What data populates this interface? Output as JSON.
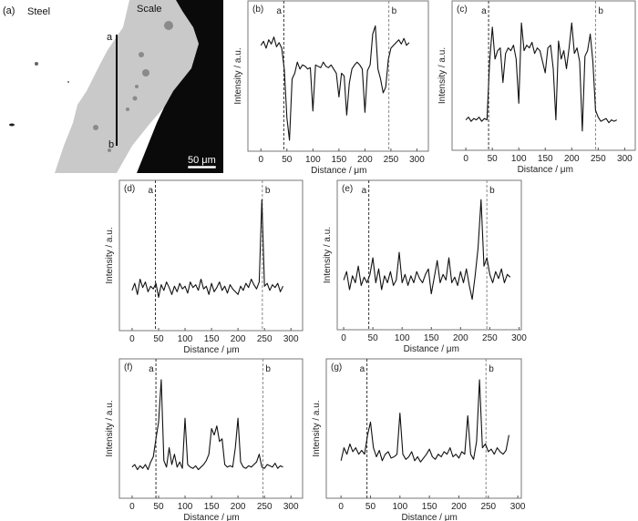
{
  "micrograph": {
    "panel_label": "(a)",
    "steel_label": "Steel",
    "scale_label": "Scale",
    "line_start_label": "a",
    "line_end_label": "b",
    "scale_bar_label": "50 μm",
    "colors": {
      "steel": "#ffffff",
      "scale": "#c9c9c9",
      "resin": "#0a0a0a",
      "line": "#000000"
    }
  },
  "chart_data": [
    {
      "type": "line",
      "panel_label": "(b)",
      "xlabel": "Distance / μm",
      "ylabel": "Intensity / a.u.",
      "xlim": [
        -25,
        322
      ],
      "ylim": [
        0,
        100
      ],
      "xticks": [
        0,
        50,
        100,
        150,
        200,
        250,
        300
      ],
      "markers": [
        {
          "label": "a",
          "x": 44
        },
        {
          "label": "b",
          "x": 246
        }
      ],
      "x": [
        0,
        5,
        10,
        15,
        20,
        25,
        30,
        35,
        40,
        45,
        50,
        55,
        60,
        65,
        70,
        75,
        80,
        85,
        90,
        95,
        100,
        105,
        110,
        115,
        120,
        125,
        130,
        135,
        140,
        145,
        150,
        155,
        160,
        165,
        170,
        175,
        180,
        185,
        190,
        195,
        200,
        205,
        210,
        215,
        220,
        225,
        230,
        235,
        240,
        245,
        250,
        255,
        260,
        265,
        270,
        275,
        280,
        285
      ],
      "y": [
        72,
        75,
        70,
        76,
        73,
        78,
        71,
        74,
        70,
        55,
        20,
        4,
        48,
        52,
        60,
        55,
        58,
        57,
        55,
        56,
        25,
        58,
        57,
        56,
        60,
        57,
        56,
        58,
        55,
        52,
        35,
        52,
        50,
        22,
        45,
        55,
        58,
        60,
        58,
        55,
        24,
        54,
        58,
        80,
        86,
        55,
        48,
        38,
        42,
        62,
        70,
        72,
        74,
        76,
        73,
        77,
        72,
        74
      ]
    },
    {
      "type": "line",
      "panel_label": "(c)",
      "xlabel": "Distance / μm",
      "ylabel": "Intensity / a.u.",
      "xlim": [
        -26,
        320
      ],
      "ylim": [
        0,
        100
      ],
      "xticks": [
        0,
        50,
        100,
        150,
        200,
        250,
        300
      ],
      "markers": [
        {
          "label": "a",
          "x": 43
        },
        {
          "label": "b",
          "x": 245
        }
      ],
      "x": [
        0,
        5,
        10,
        15,
        20,
        25,
        30,
        35,
        40,
        45,
        50,
        55,
        60,
        65,
        70,
        75,
        80,
        85,
        90,
        95,
        100,
        105,
        110,
        115,
        120,
        125,
        130,
        135,
        140,
        145,
        150,
        155,
        160,
        165,
        170,
        175,
        180,
        185,
        190,
        195,
        200,
        205,
        210,
        215,
        220,
        225,
        230,
        235,
        240,
        245,
        250,
        255,
        260,
        265,
        270,
        275,
        280,
        285
      ],
      "y": [
        18,
        20,
        17,
        19,
        18,
        20,
        17,
        19,
        18,
        60,
        85,
        62,
        68,
        70,
        45,
        66,
        70,
        68,
        72,
        62,
        30,
        88,
        68,
        72,
        70,
        74,
        66,
        70,
        68,
        60,
        52,
        70,
        72,
        55,
        18,
        75,
        62,
        68,
        55,
        70,
        88,
        66,
        70,
        60,
        10,
        64,
        68,
        80,
        60,
        25,
        20,
        17,
        18,
        19,
        16,
        18,
        17,
        18
      ]
    },
    {
      "type": "line",
      "panel_label": "(d)",
      "xlabel": "Distance / μm",
      "ylabel": "Intensity / a.u.",
      "xlim": [
        -24,
        322
      ],
      "ylim": [
        0,
        100
      ],
      "xticks": [
        0,
        50,
        100,
        150,
        200,
        250,
        300
      ],
      "markers": [
        {
          "label": "a",
          "x": 44
        },
        {
          "label": "b",
          "x": 246
        }
      ],
      "x": [
        0,
        5,
        10,
        15,
        20,
        25,
        30,
        35,
        40,
        45,
        50,
        55,
        60,
        65,
        70,
        75,
        80,
        85,
        90,
        95,
        100,
        105,
        110,
        115,
        120,
        125,
        130,
        135,
        140,
        145,
        150,
        155,
        160,
        165,
        170,
        175,
        180,
        185,
        190,
        195,
        200,
        205,
        210,
        215,
        220,
        225,
        230,
        235,
        240,
        245,
        250,
        255,
        260,
        265,
        270,
        275,
        280,
        285
      ],
      "y": [
        25,
        30,
        22,
        33,
        27,
        31,
        24,
        28,
        26,
        30,
        20,
        29,
        25,
        31,
        27,
        22,
        28,
        24,
        30,
        26,
        28,
        23,
        31,
        27,
        29,
        25,
        33,
        26,
        28,
        22,
        30,
        24,
        27,
        31,
        25,
        28,
        23,
        29,
        26,
        24,
        22,
        28,
        25,
        30,
        27,
        33,
        29,
        26,
        31,
        90,
        28,
        30,
        25,
        29,
        27,
        30,
        24,
        28
      ]
    },
    {
      "type": "line",
      "panel_label": "(e)",
      "xlabel": "Distance / μm",
      "ylabel": "Intensity / a.u.",
      "xlim": [
        -11,
        304
      ],
      "ylim": [
        0,
        100
      ],
      "xticks": [
        0,
        50,
        100,
        150,
        200,
        250,
        300
      ],
      "markers": [
        {
          "label": "a",
          "x": 43
        },
        {
          "label": "b",
          "x": 245
        }
      ],
      "x": [
        0,
        5,
        10,
        15,
        20,
        25,
        30,
        35,
        40,
        45,
        50,
        55,
        60,
        65,
        70,
        75,
        80,
        85,
        90,
        95,
        100,
        105,
        110,
        115,
        120,
        125,
        130,
        135,
        140,
        145,
        150,
        155,
        160,
        165,
        170,
        175,
        180,
        185,
        190,
        195,
        200,
        205,
        210,
        215,
        220,
        225,
        230,
        235,
        240,
        245,
        250,
        255,
        260,
        265,
        270,
        275,
        280,
        285
      ],
      "y": [
        32,
        38,
        25,
        35,
        30,
        42,
        28,
        34,
        30,
        36,
        48,
        30,
        40,
        25,
        35,
        30,
        38,
        28,
        32,
        52,
        30,
        36,
        28,
        35,
        30,
        38,
        33,
        30,
        36,
        40,
        22,
        34,
        46,
        30,
        36,
        32,
        48,
        30,
        34,
        28,
        38,
        30,
        40,
        28,
        18,
        35,
        55,
        90,
        42,
        48,
        36,
        30,
        38,
        33,
        40,
        30,
        36,
        34
      ]
    },
    {
      "type": "line",
      "panel_label": "(f)",
      "xlabel": "Distance / μm",
      "ylabel": "Intensity / a.u.",
      "xlim": [
        -24,
        322
      ],
      "ylim": [
        0,
        100
      ],
      "xticks": [
        0,
        50,
        100,
        150,
        200,
        250,
        300
      ],
      "markers": [
        {
          "label": "a",
          "x": 45
        },
        {
          "label": "b",
          "x": 247
        }
      ],
      "x": [
        0,
        5,
        10,
        15,
        20,
        25,
        30,
        35,
        40,
        45,
        50,
        55,
        60,
        65,
        70,
        75,
        80,
        85,
        90,
        95,
        100,
        105,
        110,
        115,
        120,
        125,
        130,
        135,
        140,
        145,
        150,
        155,
        160,
        165,
        170,
        175,
        180,
        185,
        190,
        195,
        200,
        205,
        210,
        215,
        220,
        225,
        230,
        235,
        240,
        245,
        250,
        255,
        260,
        265,
        270,
        275,
        280,
        285
      ],
      "y": [
        20,
        22,
        18,
        21,
        19,
        22,
        18,
        24,
        28,
        42,
        55,
        88,
        25,
        20,
        35,
        22,
        30,
        20,
        24,
        19,
        58,
        22,
        20,
        19,
        21,
        18,
        20,
        22,
        25,
        30,
        50,
        45,
        52,
        40,
        42,
        22,
        20,
        21,
        20,
        35,
        58,
        24,
        20,
        19,
        21,
        20,
        22,
        24,
        30,
        20,
        19,
        22,
        21,
        20,
        23,
        19,
        21,
        20
      ]
    },
    {
      "type": "line",
      "panel_label": "(g)",
      "xlabel": "Distance / μm",
      "ylabel": "Intensity / a.u.",
      "xlim": [
        -25,
        306
      ],
      "ylim": [
        0,
        100
      ],
      "xticks": [
        0,
        50,
        100,
        150,
        200,
        250,
        300
      ],
      "markers": [
        {
          "label": "a",
          "x": 44
        },
        {
          "label": "b",
          "x": 246
        }
      ],
      "x": [
        0,
        5,
        10,
        15,
        20,
        25,
        30,
        35,
        40,
        45,
        50,
        55,
        60,
        65,
        70,
        75,
        80,
        85,
        90,
        95,
        100,
        105,
        110,
        115,
        120,
        125,
        130,
        135,
        140,
        145,
        150,
        155,
        160,
        165,
        170,
        175,
        180,
        185,
        190,
        195,
        200,
        205,
        210,
        215,
        220,
        225,
        230,
        235,
        240,
        245,
        250,
        255,
        260,
        265,
        270,
        275,
        280,
        285
      ],
      "y": [
        25,
        35,
        30,
        38,
        32,
        35,
        30,
        33,
        30,
        45,
        55,
        35,
        28,
        33,
        25,
        30,
        32,
        27,
        28,
        30,
        62,
        30,
        26,
        28,
        32,
        25,
        28,
        24,
        27,
        30,
        34,
        28,
        26,
        30,
        28,
        32,
        30,
        35,
        28,
        30,
        27,
        32,
        30,
        60,
        30,
        26,
        40,
        88,
        35,
        38,
        32,
        34,
        30,
        35,
        32,
        30,
        33,
        45
      ]
    }
  ]
}
